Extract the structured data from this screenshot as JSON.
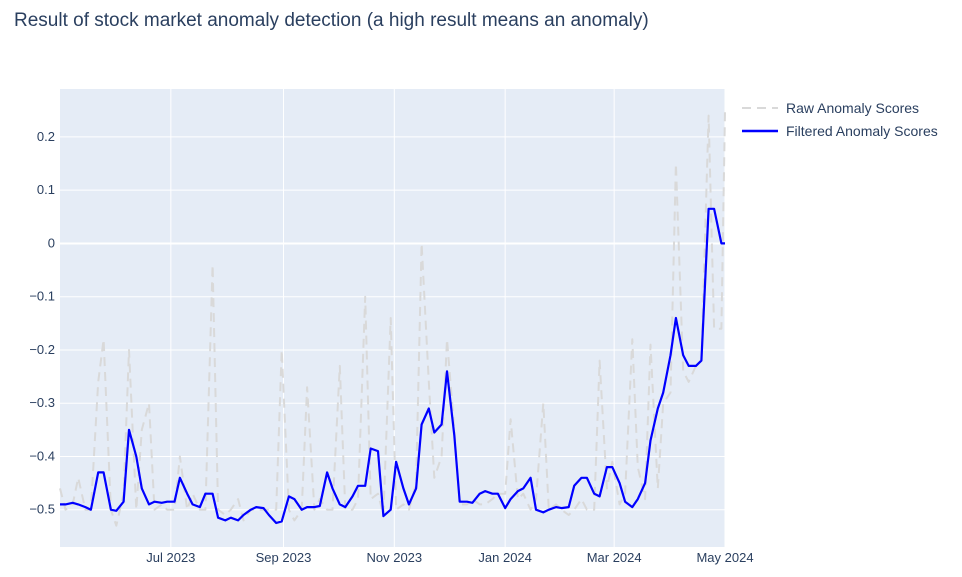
{
  "title": "Result of stock market anomaly detection (a high result means an anomaly)",
  "colors": {
    "raw": "#d9d9d9",
    "filtered": "#0000ff",
    "plot_bg": "#e5ecf6",
    "grid": "#ffffff",
    "text": "#2a3f5f"
  },
  "legend": [
    {
      "label": "Raw Anomaly Scores",
      "style": "dash",
      "color": "#d9d9d9"
    },
    {
      "label": "Filtered Anomaly Scores",
      "style": "solid",
      "color": "#0000ff"
    }
  ],
  "chart_data": {
    "type": "line",
    "title": "Result of stock market anomaly detection (a high result means an anomaly)",
    "xlabel": "",
    "ylabel": "",
    "x_range": [
      "2023-05-01",
      "2024-05-01"
    ],
    "ylim": [
      -0.57,
      0.29
    ],
    "y_ticks": [
      0.2,
      0.1,
      0,
      -0.1,
      -0.2,
      -0.3,
      -0.4,
      -0.5
    ],
    "y_tick_labels": [
      "0.2",
      "0.1",
      "0",
      "−0.1",
      "−0.2",
      "−0.3",
      "−0.4",
      "−0.5"
    ],
    "x_ticks": [
      {
        "date": "2023-07-01",
        "label": "Jul 2023"
      },
      {
        "date": "2023-09-01",
        "label": "Sep 2023"
      },
      {
        "date": "2023-11-01",
        "label": "Nov 2023"
      },
      {
        "date": "2024-01-01",
        "label": "Jan 2024"
      },
      {
        "date": "2024-03-01",
        "label": "Mar 2024"
      },
      {
        "date": "2024-05-01",
        "label": "May 2024"
      }
    ],
    "grid": true,
    "legend_position": "top-right, outside plot",
    "series": [
      {
        "name": "Raw Anomaly Scores",
        "style": "dash",
        "x": [
          "2023-05-01",
          "2023-05-04",
          "2023-05-08",
          "2023-05-11",
          "2023-05-15",
          "2023-05-18",
          "2023-05-22",
          "2023-05-25",
          "2023-05-29",
          "2023-06-01",
          "2023-06-05",
          "2023-06-08",
          "2023-06-12",
          "2023-06-15",
          "2023-06-19",
          "2023-06-22",
          "2023-06-26",
          "2023-06-29",
          "2023-07-03",
          "2023-07-06",
          "2023-07-10",
          "2023-07-13",
          "2023-07-17",
          "2023-07-20",
          "2023-07-24",
          "2023-07-27",
          "2023-07-31",
          "2023-08-03",
          "2023-08-07",
          "2023-08-10",
          "2023-08-14",
          "2023-08-17",
          "2023-08-21",
          "2023-08-24",
          "2023-08-28",
          "2023-08-31",
          "2023-09-04",
          "2023-09-07",
          "2023-09-11",
          "2023-09-14",
          "2023-09-18",
          "2023-09-21",
          "2023-09-25",
          "2023-09-28",
          "2023-10-02",
          "2023-10-05",
          "2023-10-09",
          "2023-10-12",
          "2023-10-16",
          "2023-10-19",
          "2023-10-23",
          "2023-10-26",
          "2023-10-30",
          "2023-11-02",
          "2023-11-06",
          "2023-11-09",
          "2023-11-13",
          "2023-11-16",
          "2023-11-20",
          "2023-11-23",
          "2023-11-27",
          "2023-11-30",
          "2023-12-04",
          "2023-12-07",
          "2023-12-11",
          "2023-12-14",
          "2023-12-18",
          "2023-12-21",
          "2023-12-25",
          "2023-12-28",
          "2024-01-01",
          "2024-01-04",
          "2024-01-08",
          "2024-01-11",
          "2024-01-15",
          "2024-01-18",
          "2024-01-22",
          "2024-01-25",
          "2024-01-29",
          "2024-02-01",
          "2024-02-05",
          "2024-02-08",
          "2024-02-12",
          "2024-02-15",
          "2024-02-19",
          "2024-02-22",
          "2024-02-26",
          "2024-02-29",
          "2024-03-04",
          "2024-03-07",
          "2024-03-11",
          "2024-03-14",
          "2024-03-18",
          "2024-03-21",
          "2024-03-25",
          "2024-03-28",
          "2024-04-01",
          "2024-04-04",
          "2024-04-08",
          "2024-04-11",
          "2024-04-15",
          "2024-04-18",
          "2024-04-22",
          "2024-04-25",
          "2024-04-29",
          "2024-05-01"
        ],
        "values": [
          -0.46,
          -0.5,
          -0.49,
          -0.44,
          -0.5,
          -0.5,
          -0.26,
          -0.18,
          -0.5,
          -0.53,
          -0.47,
          -0.2,
          -0.5,
          -0.35,
          -0.3,
          -0.5,
          -0.49,
          -0.5,
          -0.5,
          -0.4,
          -0.5,
          -0.47,
          -0.5,
          -0.5,
          -0.04,
          -0.5,
          -0.51,
          -0.5,
          -0.48,
          -0.52,
          -0.5,
          -0.5,
          -0.5,
          -0.5,
          -0.5,
          -0.2,
          -0.5,
          -0.52,
          -0.5,
          -0.27,
          -0.5,
          -0.48,
          -0.5,
          -0.5,
          -0.23,
          -0.5,
          -0.5,
          -0.48,
          -0.1,
          -0.48,
          -0.47,
          -0.51,
          -0.14,
          -0.5,
          -0.49,
          -0.5,
          -0.45,
          0.0,
          -0.26,
          -0.44,
          -0.4,
          -0.18,
          -0.35,
          -0.49,
          -0.49,
          -0.48,
          -0.49,
          -0.49,
          -0.48,
          -0.47,
          -0.47,
          -0.33,
          -0.48,
          -0.47,
          -0.5,
          -0.48,
          -0.3,
          -0.5,
          -0.49,
          -0.5,
          -0.51,
          -0.5,
          -0.48,
          -0.5,
          -0.5,
          -0.22,
          -0.46,
          -0.41,
          -0.49,
          -0.47,
          -0.18,
          -0.42,
          -0.48,
          -0.19,
          -0.46,
          -0.3,
          -0.28,
          0.15,
          -0.24,
          -0.26,
          -0.23,
          -0.22,
          0.24,
          -0.16,
          -0.16,
          0.25
        ]
      },
      {
        "name": "Filtered Anomaly Scores",
        "style": "solid",
        "x": [
          "2023-05-01",
          "2023-05-04",
          "2023-05-08",
          "2023-05-11",
          "2023-05-15",
          "2023-05-18",
          "2023-05-22",
          "2023-05-25",
          "2023-05-29",
          "2023-06-01",
          "2023-06-05",
          "2023-06-08",
          "2023-06-12",
          "2023-06-15",
          "2023-06-19",
          "2023-06-22",
          "2023-06-26",
          "2023-06-29",
          "2023-07-03",
          "2023-07-06",
          "2023-07-10",
          "2023-07-13",
          "2023-07-17",
          "2023-07-20",
          "2023-07-24",
          "2023-07-27",
          "2023-07-31",
          "2023-08-03",
          "2023-08-07",
          "2023-08-10",
          "2023-08-14",
          "2023-08-17",
          "2023-08-21",
          "2023-08-24",
          "2023-08-28",
          "2023-08-31",
          "2023-09-04",
          "2023-09-07",
          "2023-09-11",
          "2023-09-14",
          "2023-09-18",
          "2023-09-21",
          "2023-09-25",
          "2023-09-28",
          "2023-10-02",
          "2023-10-05",
          "2023-10-09",
          "2023-10-12",
          "2023-10-16",
          "2023-10-19",
          "2023-10-23",
          "2023-10-26",
          "2023-10-30",
          "2023-11-02",
          "2023-11-06",
          "2023-11-09",
          "2023-11-13",
          "2023-11-16",
          "2023-11-20",
          "2023-11-23",
          "2023-11-27",
          "2023-11-30",
          "2023-12-04",
          "2023-12-07",
          "2023-12-11",
          "2023-12-14",
          "2023-12-18",
          "2023-12-21",
          "2023-12-25",
          "2023-12-28",
          "2024-01-01",
          "2024-01-04",
          "2024-01-08",
          "2024-01-11",
          "2024-01-15",
          "2024-01-18",
          "2024-01-22",
          "2024-01-25",
          "2024-01-29",
          "2024-02-01",
          "2024-02-05",
          "2024-02-08",
          "2024-02-12",
          "2024-02-15",
          "2024-02-19",
          "2024-02-22",
          "2024-02-26",
          "2024-02-29",
          "2024-03-04",
          "2024-03-07",
          "2024-03-11",
          "2024-03-14",
          "2024-03-18",
          "2024-03-21",
          "2024-03-25",
          "2024-03-28",
          "2024-04-01",
          "2024-04-04",
          "2024-04-08",
          "2024-04-11",
          "2024-04-15",
          "2024-04-18",
          "2024-04-22",
          "2024-04-25",
          "2024-04-29",
          "2024-05-01"
        ],
        "values": [
          -0.49,
          -0.49,
          -0.487,
          -0.49,
          -0.495,
          -0.5,
          -0.43,
          -0.43,
          -0.5,
          -0.502,
          -0.485,
          -0.35,
          -0.4,
          -0.46,
          -0.49,
          -0.485,
          -0.487,
          -0.485,
          -0.485,
          -0.44,
          -0.47,
          -0.49,
          -0.495,
          -0.47,
          -0.47,
          -0.515,
          -0.52,
          -0.515,
          -0.52,
          -0.51,
          -0.5,
          -0.495,
          -0.497,
          -0.51,
          -0.525,
          -0.522,
          -0.475,
          -0.48,
          -0.5,
          -0.495,
          -0.495,
          -0.493,
          -0.43,
          -0.46,
          -0.49,
          -0.495,
          -0.475,
          -0.455,
          -0.455,
          -0.385,
          -0.39,
          -0.512,
          -0.5,
          -0.41,
          -0.46,
          -0.49,
          -0.46,
          -0.34,
          -0.31,
          -0.355,
          -0.34,
          -0.24,
          -0.36,
          -0.485,
          -0.485,
          -0.487,
          -0.47,
          -0.465,
          -0.47,
          -0.47,
          -0.497,
          -0.48,
          -0.465,
          -0.46,
          -0.44,
          -0.5,
          -0.505,
          -0.5,
          -0.495,
          -0.497,
          -0.495,
          -0.455,
          -0.44,
          -0.44,
          -0.47,
          -0.475,
          -0.42,
          -0.42,
          -0.45,
          -0.485,
          -0.495,
          -0.48,
          -0.45,
          -0.37,
          -0.31,
          -0.28,
          -0.21,
          -0.14,
          -0.21,
          -0.23,
          -0.23,
          -0.22,
          0.065,
          0.065,
          0.0,
          0.0
        ]
      }
    ]
  }
}
